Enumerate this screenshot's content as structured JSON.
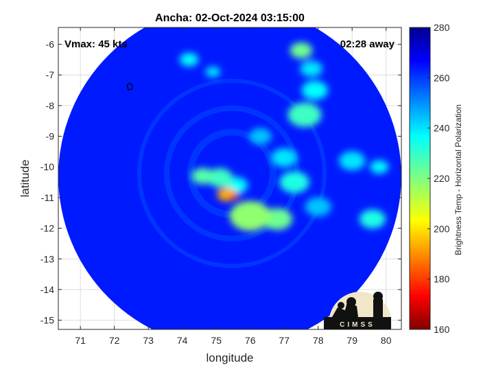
{
  "chart_data": {
    "type": "heatmap",
    "title": "Ancha: 02-Oct-2024 03:15:00",
    "annotation_left": "Vmax: 45 kts",
    "annotation_right": "02:28 away",
    "xlabel": "longitude",
    "ylabel": "latitude",
    "xlim": [
      70.35,
      80.45
    ],
    "ylim": [
      -15.3,
      -5.45
    ],
    "xticks": [
      71,
      72,
      73,
      74,
      75,
      76,
      77,
      78,
      79,
      80
    ],
    "xtick_labels": [
      "71",
      "72",
      "73",
      "74",
      "75",
      "76",
      "77",
      "78",
      "79",
      "80"
    ],
    "yticks": [
      -6,
      -7,
      -8,
      -9,
      -10,
      -11,
      -12,
      -13,
      -14,
      -15
    ],
    "ytick_labels": [
      "-6",
      "-7",
      "-8",
      "-9",
      "-10",
      "-11",
      "-12",
      "-13",
      "-14",
      "-15"
    ],
    "grid": true,
    "colorbar": {
      "label": "Brightness Temp - Horizontal Polarization",
      "range": [
        160,
        280
      ],
      "ticks": [
        160,
        180,
        200,
        220,
        240,
        260,
        280
      ],
      "tick_labels": [
        "160",
        "180",
        "200",
        "220",
        "240",
        "260",
        "280"
      ],
      "colormap": "jet"
    },
    "swath_center": [
      75.3,
      -10.3
    ],
    "background_temp": 262,
    "features": [
      {
        "lon": 75.3,
        "lat": -10.9,
        "r": 0.25,
        "temp": 195
      },
      {
        "lon": 75.55,
        "lat": -10.95,
        "r": 0.12,
        "temp": 178
      },
      {
        "lon": 75.1,
        "lat": -10.35,
        "r": 0.35,
        "temp": 228
      },
      {
        "lon": 74.6,
        "lat": -10.3,
        "r": 0.3,
        "temp": 225
      },
      {
        "lon": 75.6,
        "lat": -10.6,
        "r": 0.3,
        "temp": 235
      },
      {
        "lon": 76.0,
        "lat": -11.6,
        "r": 0.55,
        "temp": 218
      },
      {
        "lon": 76.8,
        "lat": -11.7,
        "r": 0.4,
        "temp": 222
      },
      {
        "lon": 77.3,
        "lat": -10.5,
        "r": 0.4,
        "temp": 232
      },
      {
        "lon": 77.0,
        "lat": -9.7,
        "r": 0.35,
        "temp": 238
      },
      {
        "lon": 77.6,
        "lat": -8.3,
        "r": 0.45,
        "temp": 228
      },
      {
        "lon": 77.9,
        "lat": -7.5,
        "r": 0.35,
        "temp": 235
      },
      {
        "lon": 77.5,
        "lat": -6.2,
        "r": 0.3,
        "temp": 222
      },
      {
        "lon": 77.8,
        "lat": -6.8,
        "r": 0.3,
        "temp": 238
      },
      {
        "lon": 79.0,
        "lat": -9.8,
        "r": 0.35,
        "temp": 238
      },
      {
        "lon": 79.6,
        "lat": -11.7,
        "r": 0.35,
        "temp": 232
      },
      {
        "lon": 79.8,
        "lat": -10.0,
        "r": 0.25,
        "temp": 236
      },
      {
        "lon": 76.3,
        "lat": -9.0,
        "r": 0.3,
        "temp": 242
      },
      {
        "lon": 74.2,
        "lat": -6.5,
        "r": 0.25,
        "temp": 235
      },
      {
        "lon": 74.9,
        "lat": -6.9,
        "r": 0.2,
        "temp": 238
      },
      {
        "lon": 78.0,
        "lat": -11.3,
        "r": 0.35,
        "temp": 242
      }
    ],
    "logo_text": "CIMSS"
  }
}
